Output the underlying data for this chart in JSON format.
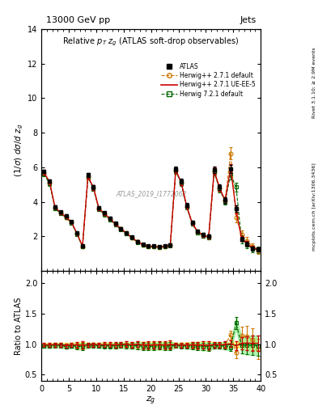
{
  "title_left": "13000 GeV pp",
  "title_right": "Jets",
  "plot_title": "Relative $p_T$ $z_g$ (ATLAS soft-drop observables)",
  "xlabel": "$z_g$",
  "ylabel_main": "$(1/\\sigma)$ $d\\sigma/d$ $z_g$",
  "ylabel_ratio": "Ratio to ATLAS",
  "rivet_label": "Rivet 3.1.10; ≥ 2.9M events",
  "mcplots_label": "mcplots.cern.ch [arXiv:1306.3436]",
  "watermark": "ATLAS_2019_I1772062",
  "background_color": "#ffffff",
  "main_ylim": [
    0,
    14
  ],
  "ratio_ylim": [
    0.4,
    2.2
  ],
  "xlim": [
    0,
    40
  ],
  "atlas_x": [
    0.5,
    1.5,
    2.5,
    3.5,
    4.5,
    5.5,
    6.5,
    7.5,
    8.5,
    9.5,
    10.5,
    11.5,
    12.5,
    13.5,
    14.5,
    15.5,
    16.5,
    17.5,
    18.5,
    19.5,
    20.5,
    21.5,
    22.5,
    23.5,
    24.5,
    25.5,
    26.5,
    27.5,
    28.5,
    29.5,
    30.5,
    31.5,
    32.5,
    33.5,
    34.5,
    35.5,
    36.5,
    37.5,
    38.5,
    39.5
  ],
  "atlas_y": [
    5.75,
    5.2,
    3.7,
    3.4,
    3.2,
    2.85,
    2.2,
    1.45,
    5.55,
    4.85,
    3.65,
    3.35,
    3.05,
    2.75,
    2.45,
    2.2,
    1.95,
    1.7,
    1.55,
    1.45,
    1.45,
    1.4,
    1.45,
    1.5,
    5.9,
    5.2,
    3.8,
    2.8,
    2.3,
    2.1,
    2.0,
    5.85,
    4.85,
    4.1,
    5.9,
    3.6,
    1.85,
    1.55,
    1.3,
    1.25
  ],
  "atlas_yerr": [
    0.1,
    0.1,
    0.08,
    0.08,
    0.08,
    0.07,
    0.07,
    0.06,
    0.12,
    0.11,
    0.09,
    0.09,
    0.08,
    0.08,
    0.07,
    0.07,
    0.06,
    0.06,
    0.06,
    0.06,
    0.06,
    0.06,
    0.06,
    0.07,
    0.14,
    0.13,
    0.11,
    0.1,
    0.09,
    0.09,
    0.09,
    0.18,
    0.16,
    0.15,
    0.22,
    0.18,
    0.12,
    0.12,
    0.11,
    0.11
  ],
  "hw271_x": [
    0.5,
    1.5,
    2.5,
    3.5,
    4.5,
    5.5,
    6.5,
    7.5,
    8.5,
    9.5,
    10.5,
    11.5,
    12.5,
    13.5,
    14.5,
    15.5,
    16.5,
    17.5,
    18.5,
    19.5,
    20.5,
    21.5,
    22.5,
    23.5,
    24.5,
    25.5,
    26.5,
    27.5,
    28.5,
    29.5,
    30.5,
    31.5,
    32.5,
    33.5,
    34.5,
    35.5,
    36.5,
    37.5,
    38.5,
    39.5
  ],
  "hw271_y": [
    5.65,
    5.1,
    3.65,
    3.35,
    3.1,
    2.8,
    2.15,
    1.42,
    5.45,
    4.8,
    3.6,
    3.3,
    3.0,
    2.7,
    2.42,
    2.18,
    1.92,
    1.68,
    1.52,
    1.42,
    1.42,
    1.38,
    1.42,
    1.48,
    5.82,
    5.1,
    3.72,
    2.75,
    2.25,
    2.05,
    1.95,
    5.78,
    4.78,
    4.05,
    6.8,
    3.1,
    2.1,
    1.75,
    1.4,
    1.15
  ],
  "hw271_yerr": [
    0.15,
    0.14,
    0.1,
    0.1,
    0.09,
    0.09,
    0.08,
    0.07,
    0.16,
    0.14,
    0.12,
    0.11,
    0.1,
    0.1,
    0.09,
    0.09,
    0.08,
    0.08,
    0.07,
    0.07,
    0.07,
    0.07,
    0.07,
    0.08,
    0.18,
    0.16,
    0.13,
    0.12,
    0.11,
    0.11,
    0.11,
    0.22,
    0.19,
    0.18,
    0.35,
    0.28,
    0.25,
    0.22,
    0.2,
    0.18
  ],
  "hw271ue_x": [
    0.5,
    1.5,
    2.5,
    3.5,
    4.5,
    5.5,
    6.5,
    7.5,
    8.5,
    9.5,
    10.5,
    11.5,
    12.5,
    13.5,
    14.5,
    15.5,
    16.5,
    17.5,
    18.5,
    19.5,
    20.5,
    21.5,
    22.5,
    23.5,
    24.5,
    25.5,
    26.5,
    27.5,
    28.5,
    29.5,
    30.5,
    31.5,
    32.5,
    33.5,
    34.5,
    35.5,
    36.5,
    37.5,
    38.5,
    39.5
  ],
  "hw271ue_y": [
    5.7,
    5.15,
    3.68,
    3.37,
    3.12,
    2.82,
    2.17,
    1.43,
    5.48,
    4.82,
    3.62,
    3.32,
    3.02,
    2.72,
    2.44,
    2.2,
    1.93,
    1.7,
    1.53,
    1.43,
    1.43,
    1.39,
    1.43,
    1.49,
    5.85,
    5.12,
    3.75,
    2.77,
    2.27,
    2.07,
    1.97,
    5.8,
    4.8,
    4.08,
    5.95,
    3.5,
    1.88,
    1.58,
    1.32,
    1.27
  ],
  "hw271ue_yerr": [
    0.12,
    0.11,
    0.09,
    0.08,
    0.08,
    0.07,
    0.07,
    0.06,
    0.13,
    0.12,
    0.1,
    0.1,
    0.09,
    0.08,
    0.08,
    0.07,
    0.07,
    0.06,
    0.06,
    0.06,
    0.06,
    0.06,
    0.06,
    0.07,
    0.15,
    0.14,
    0.11,
    0.1,
    0.09,
    0.09,
    0.09,
    0.19,
    0.17,
    0.16,
    0.24,
    0.19,
    0.14,
    0.13,
    0.12,
    0.11
  ],
  "hw721_x": [
    0.5,
    1.5,
    2.5,
    3.5,
    4.5,
    5.5,
    6.5,
    7.5,
    8.5,
    9.5,
    10.5,
    11.5,
    12.5,
    13.5,
    14.5,
    15.5,
    16.5,
    17.5,
    18.5,
    19.5,
    20.5,
    21.5,
    22.5,
    23.5,
    24.5,
    25.5,
    26.5,
    27.5,
    28.5,
    29.5,
    30.5,
    31.5,
    32.5,
    33.5,
    34.5,
    35.5,
    36.5,
    37.5,
    38.5,
    39.5
  ],
  "hw721_y": [
    5.6,
    5.05,
    3.62,
    3.32,
    3.08,
    2.78,
    2.12,
    1.4,
    5.42,
    4.75,
    3.56,
    3.26,
    2.97,
    2.68,
    2.4,
    2.15,
    1.9,
    1.66,
    1.5,
    1.4,
    1.4,
    1.36,
    1.4,
    1.46,
    5.78,
    5.06,
    3.68,
    2.72,
    2.22,
    2.02,
    1.92,
    5.72,
    4.72,
    4.0,
    5.6,
    4.85,
    1.82,
    1.52,
    1.28,
    1.22
  ],
  "hw721_yerr": [
    0.14,
    0.13,
    0.1,
    0.09,
    0.09,
    0.08,
    0.07,
    0.06,
    0.15,
    0.13,
    0.11,
    0.1,
    0.09,
    0.09,
    0.08,
    0.08,
    0.07,
    0.07,
    0.07,
    0.06,
    0.06,
    0.06,
    0.06,
    0.07,
    0.16,
    0.15,
    0.12,
    0.11,
    0.1,
    0.1,
    0.1,
    0.2,
    0.18,
    0.17,
    0.3,
    0.26,
    0.22,
    0.2,
    0.18,
    0.17
  ],
  "hw271_color": "#cc7700",
  "hw271ue_color": "#cc0000",
  "hw721_color": "#006600",
  "atlas_color": "#000000",
  "xticks": [
    0,
    5,
    10,
    15,
    20,
    25,
    30,
    35,
    40
  ],
  "main_yticks": [
    2,
    4,
    6,
    8,
    10,
    12,
    14
  ],
  "ratio_yticks": [
    0.5,
    1.0,
    1.5,
    2.0
  ]
}
